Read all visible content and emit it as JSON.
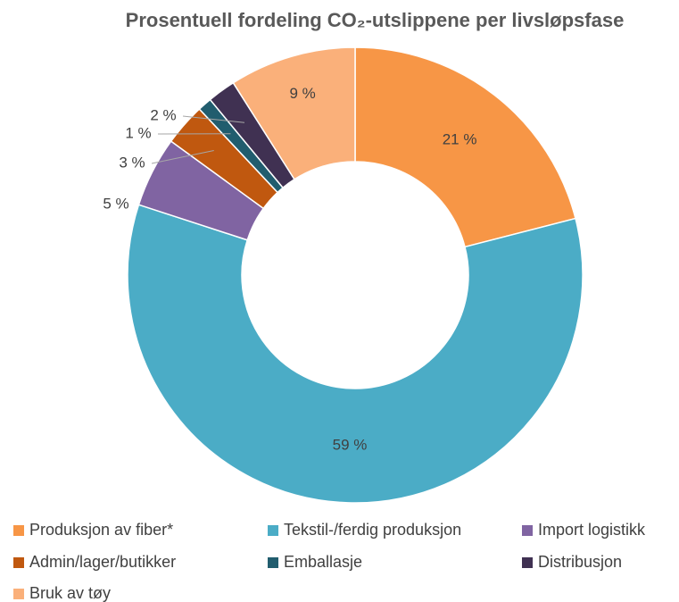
{
  "chart_data": {
    "type": "donut",
    "title": "Prosentuell fordeling CO₂-utslippene per livsløpsfase",
    "categories": [
      "Produksjon av fiber*",
      "Tekstil-/ferdig produksjon",
      "Import logistikk",
      "Admin/lager/butikker",
      "Emballasje",
      "Distribusjon",
      "Bruk av tøy"
    ],
    "values": [
      21,
      59,
      5,
      3,
      1,
      2,
      9
    ],
    "value_labels": [
      "21 %",
      "59 %",
      "5 %",
      "3 %",
      "1 %",
      "2 %",
      "9 %"
    ],
    "colors": [
      "#f79646",
      "#4bacc6",
      "#8064a2",
      "#c0580f",
      "#215d6e",
      "#403152",
      "#fab07a"
    ],
    "legend": "bottom"
  }
}
